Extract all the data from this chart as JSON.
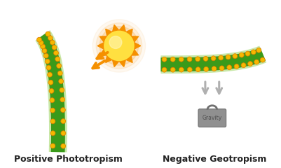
{
  "background_color": "#ffffff",
  "title_left": "Positive Phototropism",
  "title_right": "Negative Geotropism",
  "title_fontsize": 9,
  "shoot_dark_green": "#3a9a1a",
  "shoot_light_green": "#a8d878",
  "shoot_border": "#c8e8a8",
  "dot_color": "#f5b800",
  "dot_outline": "#e07800",
  "sun_inner": "#ffe040",
  "sun_outer": "#f59000",
  "arrow_color": "#f59000",
  "gravity_arrow_color": "#b0b0b0",
  "weight_color": "#909090",
  "weight_text": "Gravity",
  "weight_text_color": "#505050"
}
